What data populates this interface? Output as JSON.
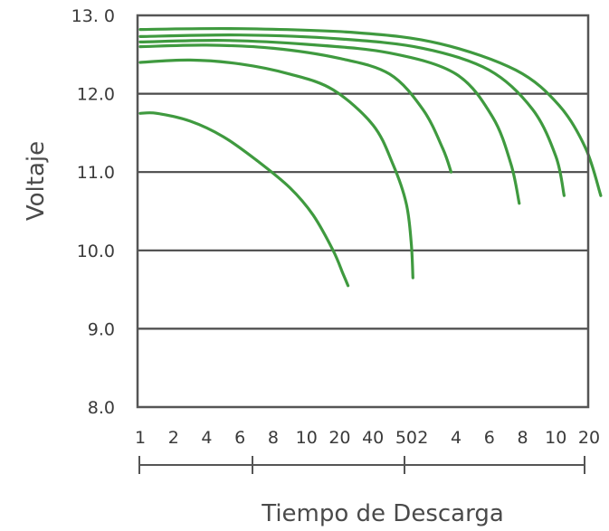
{
  "chart_data": {
    "type": "line",
    "title": "",
    "xlabel": "Tiempo de Descarga",
    "ylabel": "Voltaje",
    "ylim": [
      8.0,
      13.0
    ],
    "ytick_labels": [
      "13. 0",
      "12.0",
      "11.0",
      "10.0",
      "9.0",
      "8.0"
    ],
    "ytick_values": [
      13.0,
      12.0,
      11.0,
      10.0,
      9.0,
      8.0
    ],
    "gridlines_y": [
      12.0,
      11.0,
      10.0,
      9.0
    ],
    "grid": true,
    "legend": "none",
    "xtick_labels": [
      "1",
      "2",
      "4",
      "6",
      "8",
      "10",
      "20",
      "40",
      "50",
      "2",
      "4",
      "6",
      "8",
      "10",
      "20"
    ],
    "x_scale_index": [
      0,
      1,
      2,
      3,
      4,
      5,
      6,
      7,
      8,
      8.5,
      9.5,
      10.5,
      11.5,
      12.5,
      13.5
    ],
    "line_color": "#3f9a3f",
    "series": [
      {
        "x": [
          0,
          0.5,
          1.5,
          2.5,
          3.5,
          4.5,
          5.2,
          5.8,
          6.1,
          6.25
        ],
        "y": [
          11.75,
          11.75,
          11.65,
          11.45,
          11.15,
          10.8,
          10.45,
          10.0,
          9.7,
          9.55
        ]
      },
      {
        "x": [
          0,
          1.5,
          3,
          4.5,
          5.8,
          7.0,
          7.6,
          8.0,
          8.15,
          8.2
        ],
        "y": [
          12.4,
          12.43,
          12.38,
          12.25,
          12.05,
          11.6,
          11.1,
          10.6,
          10.1,
          9.65
        ]
      },
      {
        "x": [
          0,
          2,
          4,
          6,
          7.5,
          8.5,
          9.1,
          9.35
        ],
        "y": [
          12.6,
          12.62,
          12.58,
          12.45,
          12.25,
          11.8,
          11.3,
          11.0
        ]
      },
      {
        "x": [
          0,
          2.5,
          5,
          7.5,
          9.5,
          10.6,
          11.15,
          11.4
        ],
        "y": [
          12.66,
          12.68,
          12.63,
          12.52,
          12.25,
          11.7,
          11.1,
          10.6
        ]
      },
      {
        "x": [
          0,
          3,
          6,
          8.5,
          10.5,
          11.8,
          12.5,
          12.75
        ],
        "y": [
          12.73,
          12.75,
          12.7,
          12.58,
          12.3,
          11.8,
          11.2,
          10.7
        ]
      },
      {
        "x": [
          0,
          3,
          6.5,
          9,
          11.3,
          12.6,
          13.4,
          13.85
        ],
        "y": [
          12.82,
          12.83,
          12.78,
          12.64,
          12.3,
          11.85,
          11.3,
          10.7
        ]
      }
    ]
  }
}
